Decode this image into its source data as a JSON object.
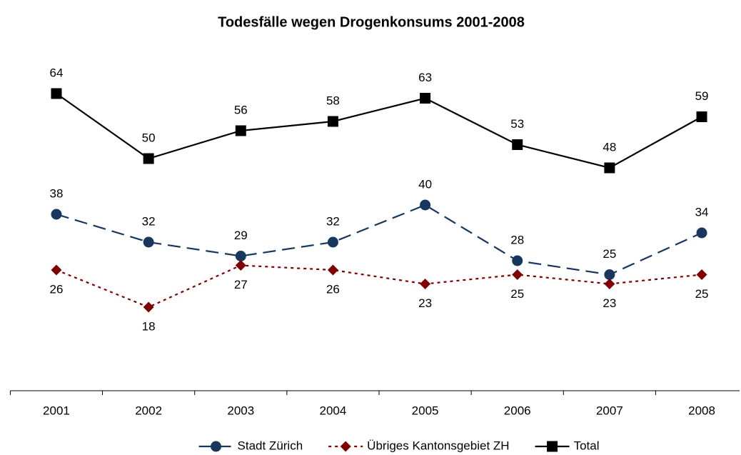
{
  "chart_data": {
    "type": "line",
    "title": "Todesfälle wegen Drogenkonsums 2001-2008",
    "categories": [
      "2001",
      "2002",
      "2003",
      "2004",
      "2005",
      "2006",
      "2007",
      "2008"
    ],
    "ylim": [
      0,
      70
    ],
    "series": [
      {
        "name": "Stadt Zürich",
        "color": "#17375e",
        "marker": "circle",
        "dash": "dashed",
        "label_position": "above",
        "values": [
          38,
          32,
          29,
          32,
          40,
          28,
          25,
          34
        ]
      },
      {
        "name": "Übriges Kantonsgebiet ZH",
        "color": "#7f0000",
        "marker": "diamond",
        "dash": "dotted",
        "label_position": "below",
        "values": [
          26,
          18,
          27,
          26,
          23,
          25,
          23,
          25
        ]
      },
      {
        "name": "Total",
        "color": "#000000",
        "marker": "square",
        "dash": "solid",
        "label_position": "above",
        "values": [
          64,
          50,
          56,
          58,
          63,
          53,
          48,
          59
        ]
      }
    ],
    "legend": "bottom"
  }
}
